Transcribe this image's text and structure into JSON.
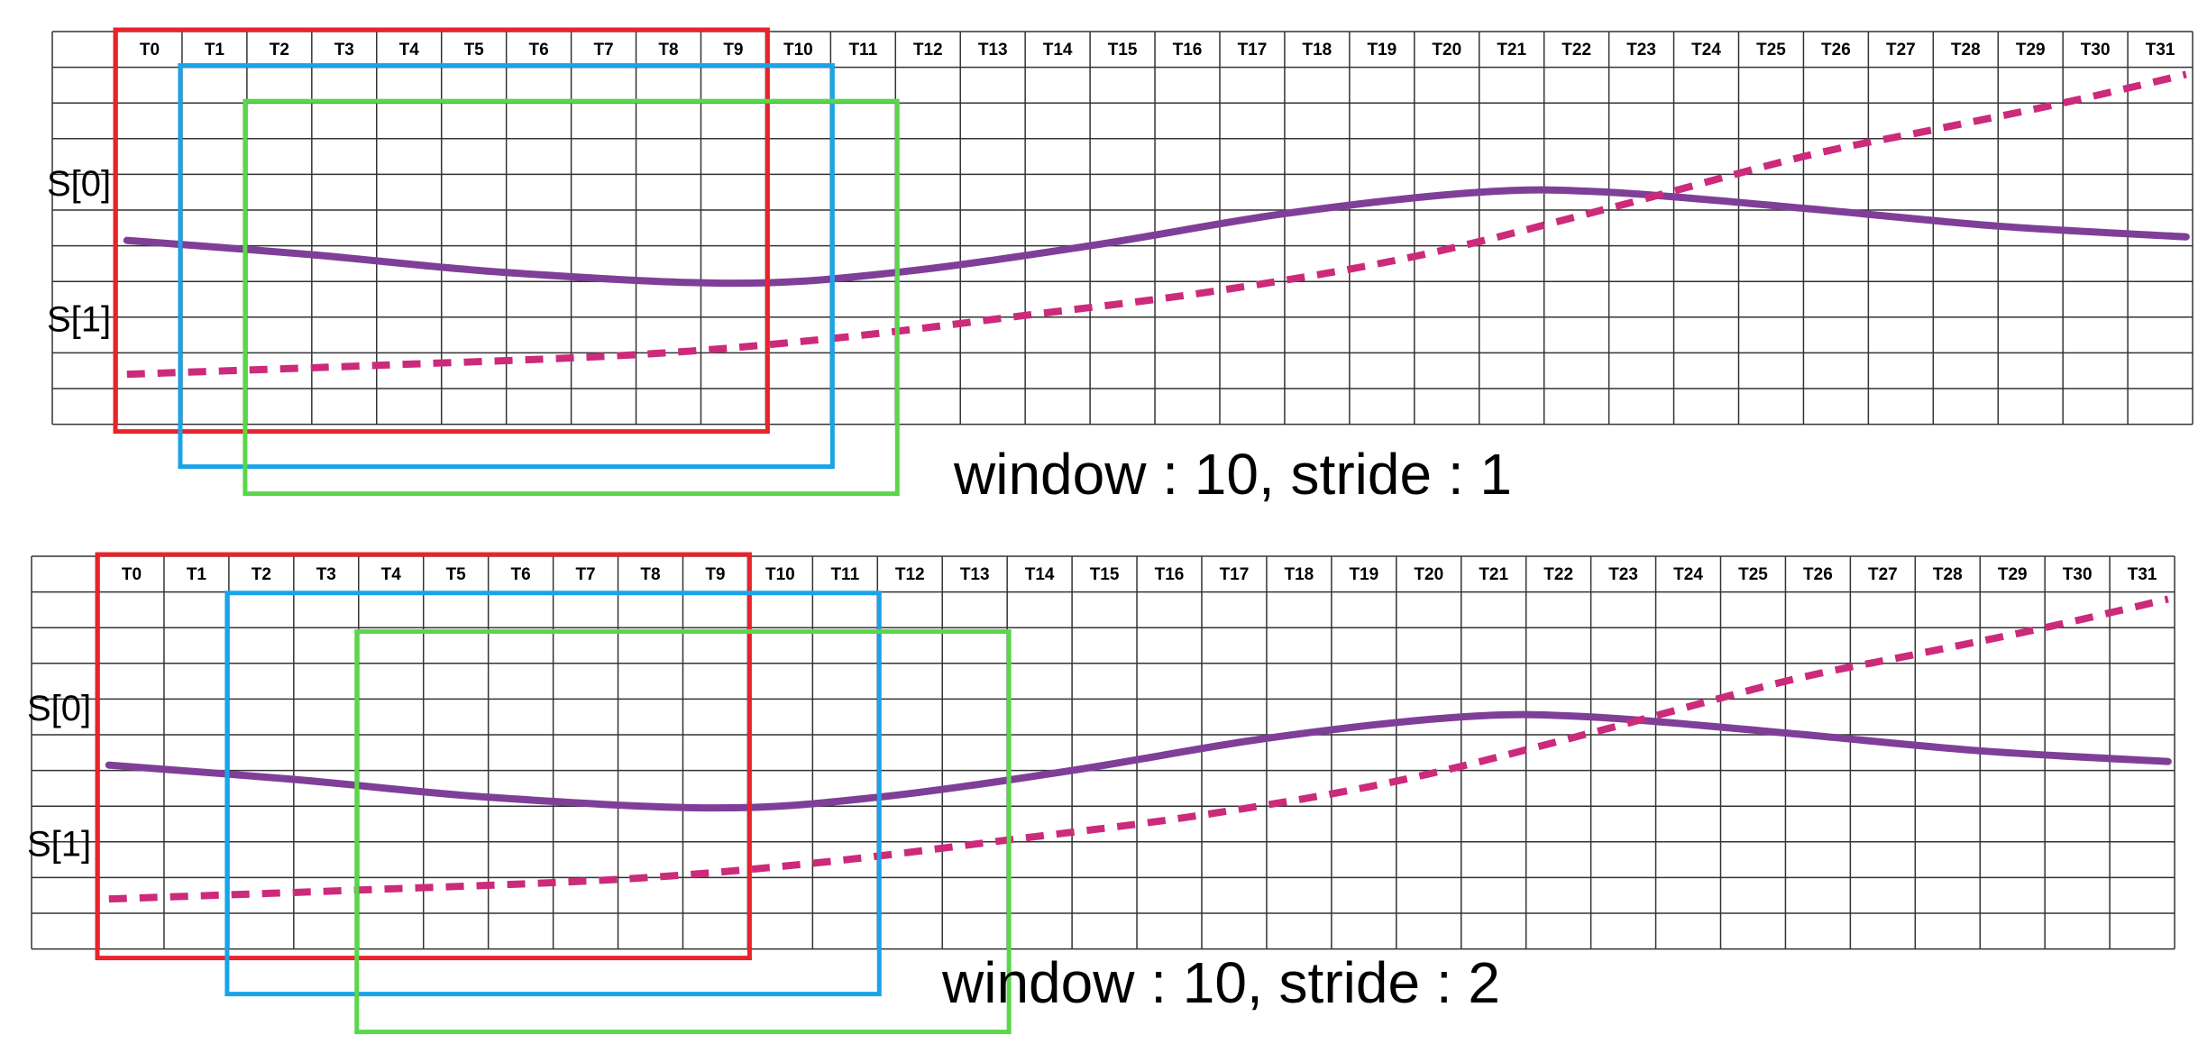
{
  "panels": [
    {
      "caption": "window : 10, stride : 1",
      "window": 10,
      "stride": 1,
      "time_labels": [
        "T0",
        "T1",
        "T2",
        "T3",
        "T4",
        "T5",
        "T6",
        "T7",
        "T8",
        "T9",
        "T10",
        "T11",
        "T12",
        "T13",
        "T14",
        "T15",
        "T16",
        "T17",
        "T18",
        "T19",
        "T20",
        "T21",
        "T22",
        "T23",
        "T24",
        "T25",
        "T26",
        "T27",
        "T28",
        "T29",
        "T30",
        "T31"
      ],
      "series_labels": [
        "S[0]",
        "S[1]"
      ]
    },
    {
      "caption": "window : 10, stride : 2",
      "window": 10,
      "stride": 2,
      "time_labels": [
        "T0",
        "T1",
        "T2",
        "T3",
        "T4",
        "T5",
        "T6",
        "T7",
        "T8",
        "T9",
        "T10",
        "T11",
        "T12",
        "T13",
        "T14",
        "T15",
        "T16",
        "T17",
        "T18",
        "T19",
        "T20",
        "T21",
        "T22",
        "T23",
        "T24",
        "T25",
        "T26",
        "T27",
        "T28",
        "T29",
        "T30",
        "T31"
      ],
      "series_labels": [
        "S[0]",
        "S[1]"
      ]
    }
  ],
  "colors": {
    "window_1": "#e8232a",
    "window_2": "#1aa3e8",
    "window_3": "#5ad64a",
    "series_0": "#7f3f98",
    "series_1": "#cc2a7a",
    "grid": "#333333"
  }
}
